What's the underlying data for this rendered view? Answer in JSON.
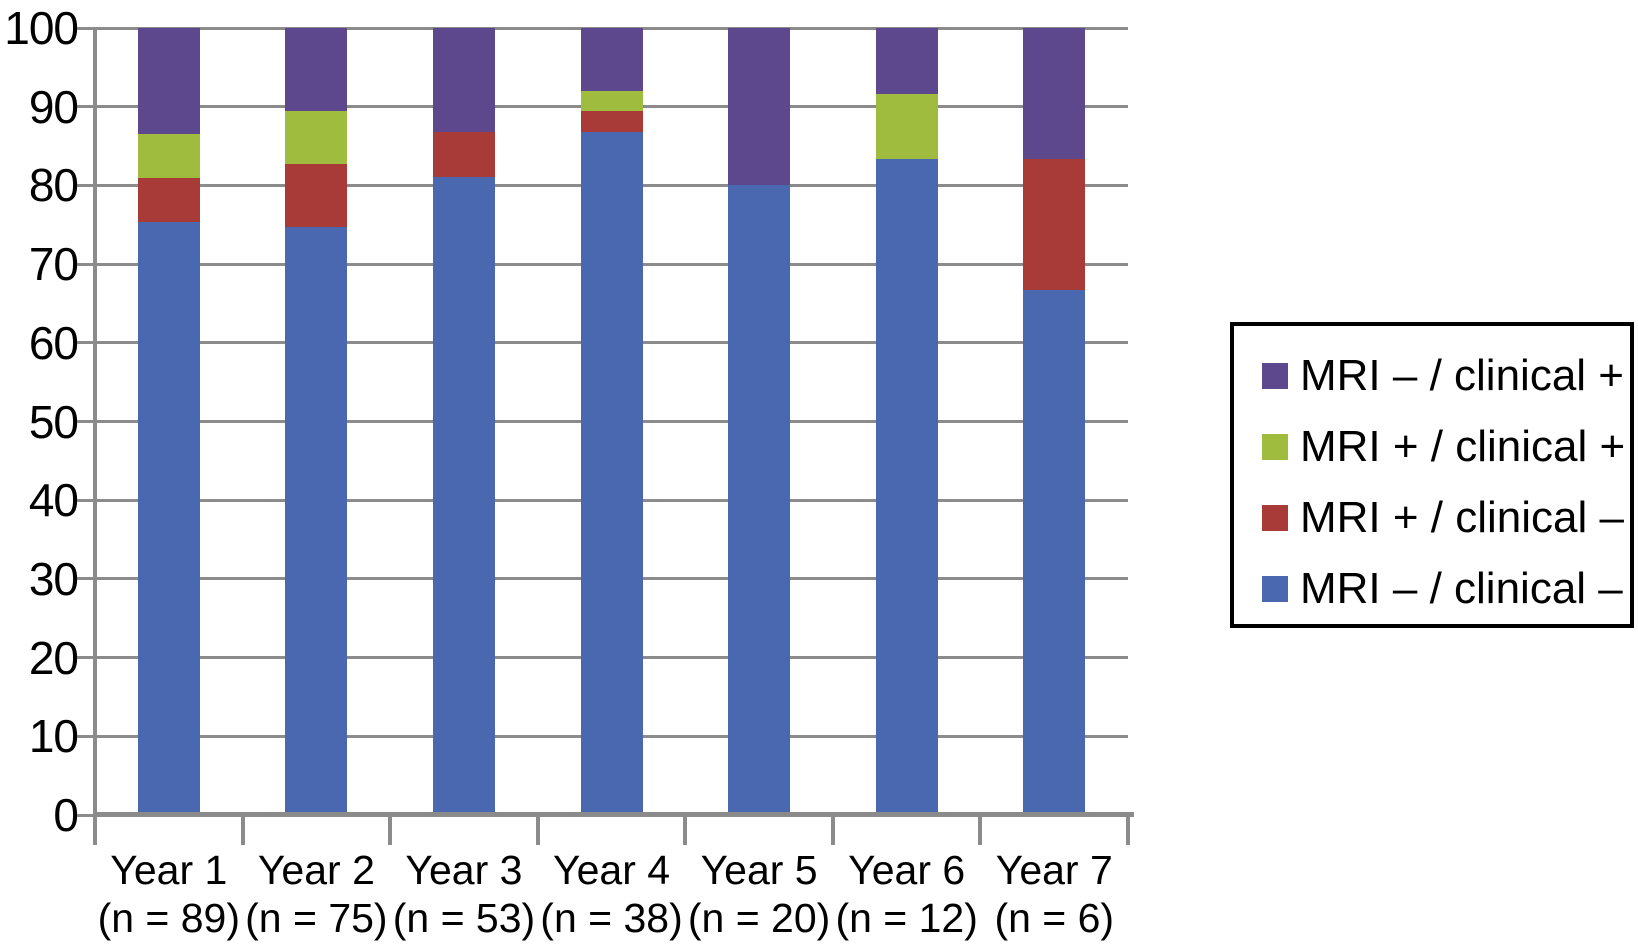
{
  "figure": {
    "background": "#ffffff",
    "grid_color": "#8b8b8b",
    "axis_color": "#8b8b8b",
    "text_color": "#000000"
  },
  "legend": {
    "border_color": "#000000",
    "items": [
      {
        "label": "MRI – / clinical +",
        "color": "#5d478d",
        "swatch": "purple-swatch"
      },
      {
        "label": "MRI + / clinical +",
        "color": "#a0bc3e",
        "swatch": "green-swatch"
      },
      {
        "label": "MRI + / clinical –",
        "color": "#a83b38",
        "swatch": "red-swatch"
      },
      {
        "label": "MRI – / clinical –",
        "color": "#4a68b0",
        "swatch": "blue-swatch"
      }
    ]
  },
  "chart_data": {
    "type": "bar",
    "subtype": "stacked-100-percent",
    "title": "",
    "xlabel": "",
    "ylabel": "",
    "ylim": [
      0,
      100
    ],
    "y_ticks": [
      0,
      10,
      20,
      30,
      40,
      50,
      60,
      70,
      80,
      90,
      100
    ],
    "grid": true,
    "legend_position": "right",
    "categories": [
      "Year 1",
      "Year 2",
      "Year 3",
      "Year 4",
      "Year 5",
      "Year 6",
      "Year 7"
    ],
    "category_sublabels": [
      "(n = 89)",
      "(n = 75)",
      "(n = 53)",
      "(n = 38)",
      "(n = 20)",
      "(n = 12)",
      "(n = 6)"
    ],
    "n_values": [
      89,
      75,
      53,
      38,
      20,
      12,
      6
    ],
    "stack_order_note": "series listed bottom-to-top of each stacked bar; values are percentages",
    "series": [
      {
        "name": "MRI – / clinical –",
        "color": "#4a68b0",
        "values": [
          75.3,
          74.7,
          81.1,
          86.8,
          80.0,
          83.3,
          66.7
        ]
      },
      {
        "name": "MRI + / clinical –",
        "color": "#a83b38",
        "values": [
          5.6,
          8.0,
          5.7,
          2.6,
          0.0,
          0.0,
          16.7
        ]
      },
      {
        "name": "MRI + / clinical +",
        "color": "#a0bc3e",
        "values": [
          5.6,
          6.7,
          0.0,
          2.6,
          0.0,
          8.3,
          0.0
        ]
      },
      {
        "name": "MRI – / clinical +",
        "color": "#5d478d",
        "values": [
          13.5,
          10.6,
          13.2,
          8.0,
          20.0,
          8.4,
          16.6
        ]
      }
    ]
  }
}
